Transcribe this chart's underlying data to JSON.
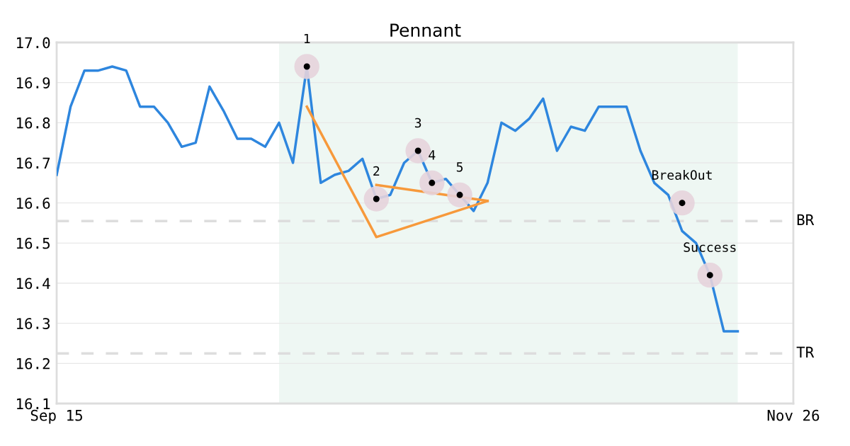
{
  "chart_data": {
    "type": "line",
    "title": "Pennant",
    "categories": [
      "Sep 15",
      null,
      null,
      null,
      null,
      null,
      null,
      null,
      null,
      null,
      null,
      null,
      null,
      null,
      null,
      null,
      null,
      null,
      null,
      null,
      null,
      null,
      null,
      null,
      null,
      null,
      null,
      null,
      null,
      null,
      null,
      null,
      null,
      null,
      null,
      null,
      null,
      null,
      null,
      null,
      null,
      null,
      null,
      null,
      null,
      null,
      null,
      null,
      null,
      null,
      null,
      null,
      null,
      "Nov 26"
    ],
    "ylim": [
      16.1,
      17.0
    ],
    "yticks": [
      16.1,
      16.2,
      16.3,
      16.4,
      16.5,
      16.6,
      16.7,
      16.8,
      16.9,
      {
        "value": 17.0,
        "label": "17.0"
      }
    ],
    "grid": "y",
    "legend": false,
    "series": [
      {
        "color": "#2e86de",
        "values": [
          16.67,
          16.84,
          16.93,
          16.93,
          16.94,
          16.93,
          16.84,
          16.84,
          16.8,
          16.74,
          16.75,
          16.89,
          16.83,
          16.76,
          16.76,
          16.74,
          16.8,
          16.7,
          16.94,
          16.65,
          16.67,
          16.68,
          16.71,
          16.61,
          16.62,
          16.7,
          16.73,
          16.65,
          16.66,
          16.62,
          16.58,
          16.65,
          16.8,
          16.78,
          16.81,
          16.86,
          16.73,
          16.79,
          16.78,
          16.84,
          16.84,
          16.84,
          16.73,
          16.65,
          16.62,
          16.53,
          16.5,
          16.42,
          16.28,
          16.28,
          null,
          null,
          null,
          null
        ]
      },
      {
        "type": "line",
        "color": "#f7993b",
        "values": [
          null,
          null,
          null,
          null,
          null,
          null,
          null,
          null,
          null,
          null,
          null,
          null,
          null,
          null,
          null,
          null,
          null,
          null,
          16.84,
          null,
          null,
          null,
          null,
          16.515,
          null,
          null,
          null,
          null,
          null,
          null,
          null,
          16.605,
          null,
          null,
          null,
          null,
          null,
          null,
          null,
          null,
          null,
          null,
          null,
          null,
          null,
          null,
          null,
          null,
          null,
          null,
          null,
          null,
          null,
          null
        ]
      },
      {
        "type": "line",
        "color": "#f7993b",
        "values": [
          null,
          null,
          null,
          null,
          null,
          null,
          null,
          null,
          null,
          null,
          null,
          null,
          null,
          null,
          null,
          null,
          null,
          null,
          null,
          null,
          null,
          null,
          null,
          16.645,
          null,
          null,
          null,
          null,
          null,
          null,
          null,
          16.605,
          null,
          null,
          null,
          null,
          null,
          null,
          null,
          null,
          null,
          null,
          null,
          null,
          null,
          null,
          null,
          null,
          null,
          null,
          null,
          null,
          null,
          null
        ]
      },
      {
        "type": "scatter",
        "color": "#000000",
        "marker": "circle",
        "values": [
          null,
          null,
          null,
          null,
          null,
          null,
          null,
          null,
          null,
          null,
          null,
          null,
          null,
          null,
          null,
          null,
          null,
          null,
          16.94,
          null,
          null,
          null,
          null,
          16.61,
          null,
          null,
          16.73,
          16.65,
          null,
          16.62,
          null,
          null,
          null,
          null,
          null,
          null,
          null,
          null,
          null,
          null,
          null,
          null,
          null,
          null,
          null,
          16.6,
          null,
          16.42,
          null,
          null,
          null,
          null,
          null,
          null
        ]
      }
    ],
    "annotations": [
      "1",
      "2",
      "3",
      "4",
      "5",
      "BreakOut",
      "Success"
    ],
    "ref_lines": [
      {
        "axis": "y",
        "value": 16.555,
        "label": "BR",
        "color": "#dddddd",
        "line_style": "dashed"
      },
      {
        "axis": "y",
        "value": 16.225,
        "label": "TR",
        "color": "#dddddd",
        "line_style": "dashed"
      }
    ]
  }
}
